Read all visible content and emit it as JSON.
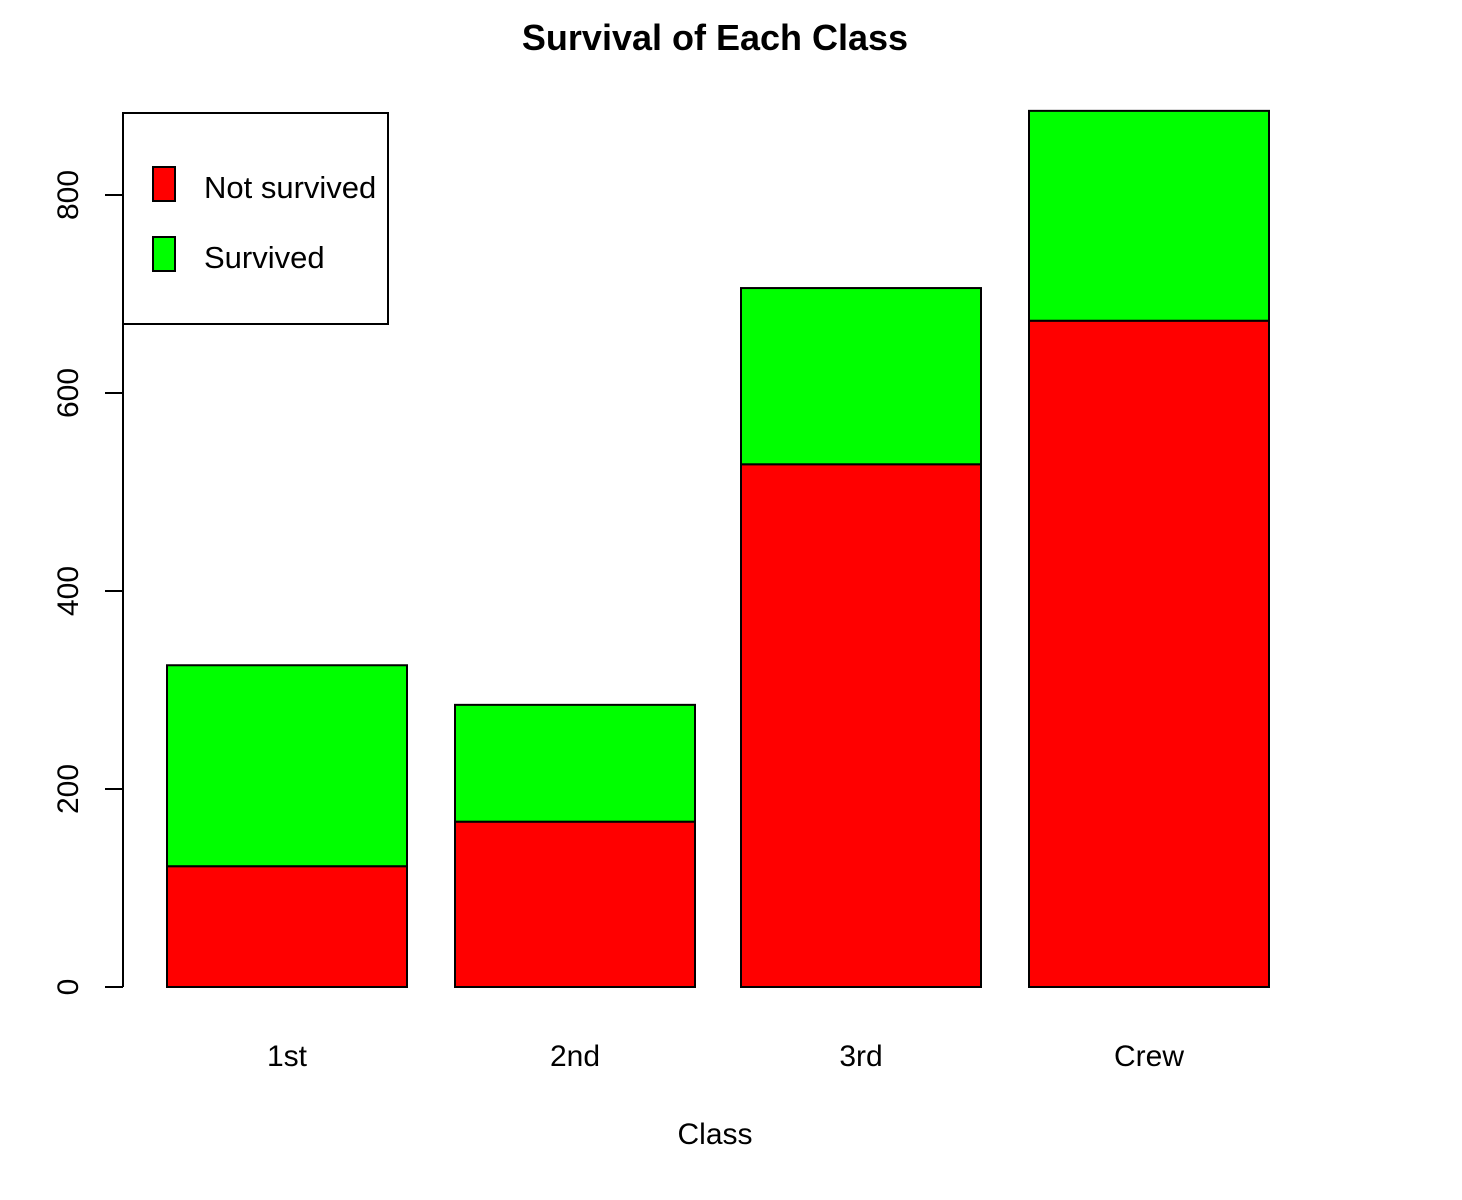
{
  "colors": {
    "not_survived": "#ff0000",
    "survived": "#00ff00",
    "stroke": "#000000"
  },
  "chart_data": {
    "type": "bar",
    "stacked": true,
    "title": "Survival of Each Class",
    "xlabel": "Class",
    "ylabel": "",
    "categories": [
      "1st",
      "2nd",
      "3rd",
      "Crew"
    ],
    "series": [
      {
        "name": "Not survived",
        "values": [
          122,
          167,
          528,
          673
        ]
      },
      {
        "name": "Survived",
        "values": [
          203,
          118,
          178,
          212
        ]
      }
    ],
    "ylim": [
      0,
      885
    ],
    "yticks": [
      0,
      200,
      400,
      600,
      800
    ],
    "legend_position": "top-left",
    "grid": false
  }
}
